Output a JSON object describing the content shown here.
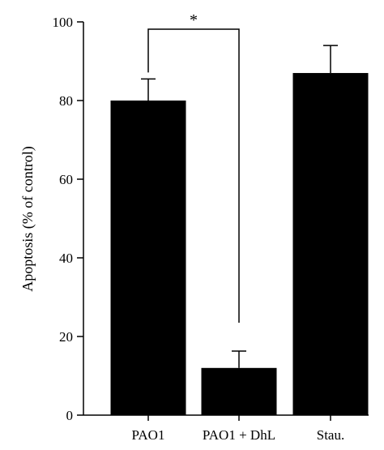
{
  "chart_data": {
    "type": "bar",
    "title": "",
    "xlabel": "",
    "ylabel": "Apoptosis (% of control)",
    "ylim": [
      0,
      100
    ],
    "yticks": [
      0,
      20,
      40,
      60,
      80,
      100
    ],
    "categories": [
      "PAO1",
      "PAO1 + DhL",
      "Stau."
    ],
    "values": [
      80,
      12,
      87
    ],
    "errors": [
      5.5,
      4.3,
      7
    ],
    "bar_color": "#000000",
    "grid": false,
    "legend": "none",
    "significance": {
      "between": [
        "PAO1",
        "PAO1 + DhL"
      ],
      "symbol": "*"
    }
  }
}
